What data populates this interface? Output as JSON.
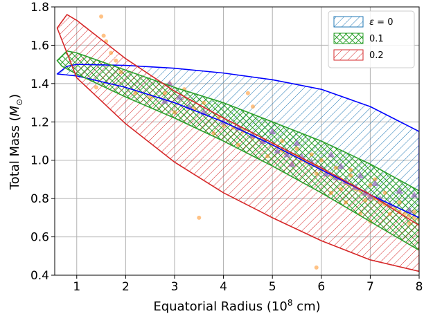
{
  "chart_data": {
    "type": "area",
    "xlabel": "Equatorial Radius (10",
    "xlabel_sup": "8",
    "xlabel_end": " cm)",
    "ylabel": "Total Mass (",
    "ylabel_sym": "M",
    "ylabel_sub": "⊙",
    "ylabel_end": ")",
    "xlim": [
      0.55,
      8.0
    ],
    "ylim": [
      0.4,
      1.8
    ],
    "x_ticks": [
      1,
      2,
      3,
      4,
      5,
      6,
      7,
      8
    ],
    "y_ticks": [
      0.4,
      0.6,
      0.8,
      1.0,
      1.2,
      1.4,
      1.6,
      1.8
    ],
    "x_tick_labels": [
      "1",
      "2",
      "3",
      "4",
      "5",
      "6",
      "7",
      "8"
    ],
    "y_tick_labels": [
      "0.4",
      "0.6",
      "0.8",
      "1.0",
      "1.2",
      "1.4",
      "1.6",
      "1.8"
    ],
    "grid": true,
    "legend_position": "top-right",
    "series": [
      {
        "name": "ε = 0",
        "legend_symbol": "ε",
        "legend_rest": " = 0",
        "color": "#1f77b4",
        "edge_color": "#0000ff",
        "hatch": "diagonal",
        "upper": [
          [
            0.6,
            1.45
          ],
          [
            0.8,
            1.49
          ],
          [
            1.0,
            1.5
          ],
          [
            2.0,
            1.495
          ],
          [
            3.0,
            1.48
          ],
          [
            4.0,
            1.455
          ],
          [
            5.0,
            1.42
          ],
          [
            6.0,
            1.37
          ],
          [
            7.0,
            1.28
          ],
          [
            8.0,
            1.15
          ]
        ],
        "lower": [
          [
            0.6,
            1.45
          ],
          [
            1.0,
            1.44
          ],
          [
            2.0,
            1.38
          ],
          [
            3.0,
            1.3
          ],
          [
            4.0,
            1.2
          ],
          [
            5.0,
            1.08
          ],
          [
            6.0,
            0.95
          ],
          [
            7.0,
            0.82
          ],
          [
            8.0,
            0.7
          ]
        ]
      },
      {
        "name": "0.1",
        "color": "#2ca02c",
        "edge_color": "#2ca02c",
        "hatch": "cross",
        "upper": [
          [
            0.6,
            1.52
          ],
          [
            0.8,
            1.57
          ],
          [
            1.0,
            1.56
          ],
          [
            2.0,
            1.47
          ],
          [
            3.0,
            1.38
          ],
          [
            4.0,
            1.3
          ],
          [
            5.0,
            1.2
          ],
          [
            6.0,
            1.1
          ],
          [
            7.0,
            0.98
          ],
          [
            8.0,
            0.84
          ]
        ],
        "lower": [
          [
            0.6,
            1.52
          ],
          [
            0.7,
            1.49
          ],
          [
            1.0,
            1.45
          ],
          [
            2.0,
            1.33
          ],
          [
            3.0,
            1.22
          ],
          [
            4.0,
            1.1
          ],
          [
            5.0,
            0.97
          ],
          [
            6.0,
            0.83
          ],
          [
            7.0,
            0.68
          ],
          [
            8.0,
            0.53
          ]
        ]
      },
      {
        "name": "0.2",
        "color": "#d62728",
        "edge_color": "#d62728",
        "hatch": "diagonal",
        "upper": [
          [
            0.6,
            1.69
          ],
          [
            0.8,
            1.76
          ],
          [
            1.0,
            1.73
          ],
          [
            2.0,
            1.53
          ],
          [
            3.0,
            1.36
          ],
          [
            4.0,
            1.22
          ],
          [
            5.0,
            1.09
          ],
          [
            6.0,
            0.96
          ],
          [
            7.0,
            0.82
          ],
          [
            8.0,
            0.66
          ]
        ],
        "lower": [
          [
            0.6,
            1.69
          ],
          [
            0.8,
            1.56
          ],
          [
            1.0,
            1.43
          ],
          [
            2.0,
            1.19
          ],
          [
            3.0,
            0.99
          ],
          [
            4.0,
            0.83
          ],
          [
            5.0,
            0.7
          ],
          [
            6.0,
            0.58
          ],
          [
            7.0,
            0.48
          ],
          [
            8.0,
            0.42
          ]
        ]
      }
    ],
    "scatter_points": {
      "color": "#ff9933",
      "points": [
        [
          1.5,
          1.75
        ],
        [
          1.55,
          1.65
        ],
        [
          1.6,
          1.62
        ],
        [
          1.7,
          1.56
        ],
        [
          1.8,
          1.52
        ],
        [
          1.4,
          1.38
        ],
        [
          1.9,
          1.46
        ],
        [
          2.2,
          1.35
        ],
        [
          2.5,
          1.33
        ],
        [
          2.8,
          1.35
        ],
        [
          2.9,
          1.4
        ],
        [
          3.2,
          1.37
        ],
        [
          3.4,
          1.27
        ],
        [
          3.6,
          1.3
        ],
        [
          3.0,
          1.25
        ],
        [
          3.9,
          1.22
        ],
        [
          4.0,
          1.18
        ],
        [
          4.2,
          1.17
        ],
        [
          4.4,
          1.15
        ],
        [
          4.6,
          1.12
        ],
        [
          4.8,
          1.1
        ],
        [
          4.5,
          1.35
        ],
        [
          4.6,
          1.28
        ],
        [
          5.0,
          1.08
        ],
        [
          5.1,
          1.07
        ],
        [
          5.2,
          1.05
        ],
        [
          5.3,
          1.04
        ],
        [
          5.4,
          1.03
        ],
        [
          5.5,
          1.02
        ],
        [
          5.6,
          1.0
        ],
        [
          5.7,
          0.99
        ],
        [
          5.8,
          0.98
        ],
        [
          5.9,
          0.97
        ],
        [
          6.0,
          0.95
        ],
        [
          6.1,
          0.94
        ],
        [
          6.2,
          0.92
        ],
        [
          6.3,
          0.91
        ],
        [
          6.4,
          0.9
        ],
        [
          6.5,
          0.88
        ],
        [
          6.6,
          0.87
        ],
        [
          6.7,
          0.85
        ],
        [
          6.8,
          0.84
        ],
        [
          6.9,
          0.83
        ],
        [
          7.0,
          0.81
        ],
        [
          7.1,
          0.8
        ],
        [
          7.2,
          0.78
        ],
        [
          7.3,
          0.77
        ],
        [
          7.4,
          0.76
        ],
        [
          7.5,
          0.75
        ],
        [
          7.6,
          0.73
        ],
        [
          7.7,
          0.72
        ],
        [
          7.8,
          0.71
        ],
        [
          7.9,
          0.7
        ],
        [
          8.0,
          0.69
        ],
        [
          5.2,
          1.1
        ],
        [
          5.5,
          1.06
        ],
        [
          5.8,
          1.03
        ],
        [
          6.0,
          1.0
        ],
        [
          6.3,
          0.96
        ],
        [
          6.6,
          0.92
        ],
        [
          7.0,
          0.87
        ],
        [
          7.3,
          0.83
        ],
        [
          7.6,
          0.78
        ],
        [
          7.9,
          0.73
        ],
        [
          5.4,
          0.98
        ],
        [
          5.9,
          0.93
        ],
        [
          6.4,
          0.85
        ],
        [
          6.9,
          0.79
        ],
        [
          7.4,
          0.72
        ],
        [
          7.8,
          0.67
        ],
        [
          3.5,
          0.7
        ],
        [
          5.9,
          0.44
        ],
        [
          6.5,
          0.78
        ],
        [
          6.8,
          0.72
        ],
        [
          7.0,
          0.68
        ],
        [
          6.6,
          0.95
        ],
        [
          6.2,
          0.83
        ],
        [
          7.1,
          0.9
        ],
        [
          4.9,
          1.02
        ],
        [
          4.3,
          1.08
        ],
        [
          3.8,
          1.14
        ]
      ]
    },
    "triangle_points": {
      "color": "#9467bd",
      "points": [
        [
          2.8,
          1.31
        ],
        [
          2.9,
          1.4
        ],
        [
          3.1,
          1.33
        ],
        [
          3.3,
          1.28
        ],
        [
          3.6,
          1.25
        ],
        [
          4.0,
          1.2
        ],
        [
          4.3,
          1.17
        ],
        [
          4.6,
          1.13
        ],
        [
          4.8,
          1.1
        ],
        [
          5.0,
          1.15
        ],
        [
          5.1,
          1.05
        ],
        [
          5.3,
          1.03
        ],
        [
          5.5,
          1.09
        ],
        [
          5.6,
          1.02
        ],
        [
          5.8,
          0.99
        ],
        [
          6.0,
          0.96
        ],
        [
          6.1,
          0.93
        ],
        [
          6.3,
          0.91
        ],
        [
          6.4,
          0.97
        ],
        [
          6.5,
          0.89
        ],
        [
          6.7,
          0.86
        ],
        [
          6.8,
          0.92
        ],
        [
          6.9,
          0.83
        ],
        [
          7.0,
          0.81
        ],
        [
          7.2,
          0.8
        ],
        [
          7.4,
          0.77
        ],
        [
          7.6,
          0.84
        ],
        [
          7.8,
          0.74
        ],
        [
          7.9,
          0.82
        ],
        [
          6.2,
          1.03
        ],
        [
          5.4,
          0.98
        ],
        [
          7.1,
          0.88
        ]
      ]
    }
  }
}
